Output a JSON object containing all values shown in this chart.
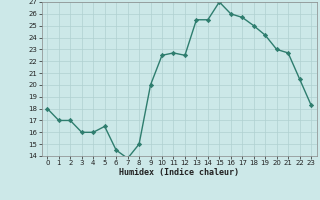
{
  "xlabel": "Humidex (Indice chaleur)",
  "x_values": [
    0,
    1,
    2,
    3,
    4,
    5,
    6,
    7,
    8,
    9,
    10,
    11,
    12,
    13,
    14,
    15,
    16,
    17,
    18,
    19,
    20,
    21,
    22,
    23
  ],
  "y_values": [
    18,
    17,
    17,
    16,
    16,
    16.5,
    14.5,
    13.8,
    15,
    20,
    22.5,
    22.7,
    22.5,
    25.5,
    25.5,
    27,
    26,
    25.7,
    25,
    24.2,
    23,
    22.7,
    20.5,
    18.3
  ],
  "ylim": [
    14,
    27
  ],
  "xlim": [
    -0.5,
    23.5
  ],
  "yticks": [
    14,
    15,
    16,
    17,
    18,
    19,
    20,
    21,
    22,
    23,
    24,
    25,
    26,
    27
  ],
  "xticks": [
    0,
    1,
    2,
    3,
    4,
    5,
    6,
    7,
    8,
    9,
    10,
    11,
    12,
    13,
    14,
    15,
    16,
    17,
    18,
    19,
    20,
    21,
    22,
    23
  ],
  "line_color": "#2e7d6e",
  "marker": "D",
  "marker_size": 2.2,
  "bg_color": "#cce8e8",
  "grid_color": "#b0d0d0",
  "line_width": 1.0
}
